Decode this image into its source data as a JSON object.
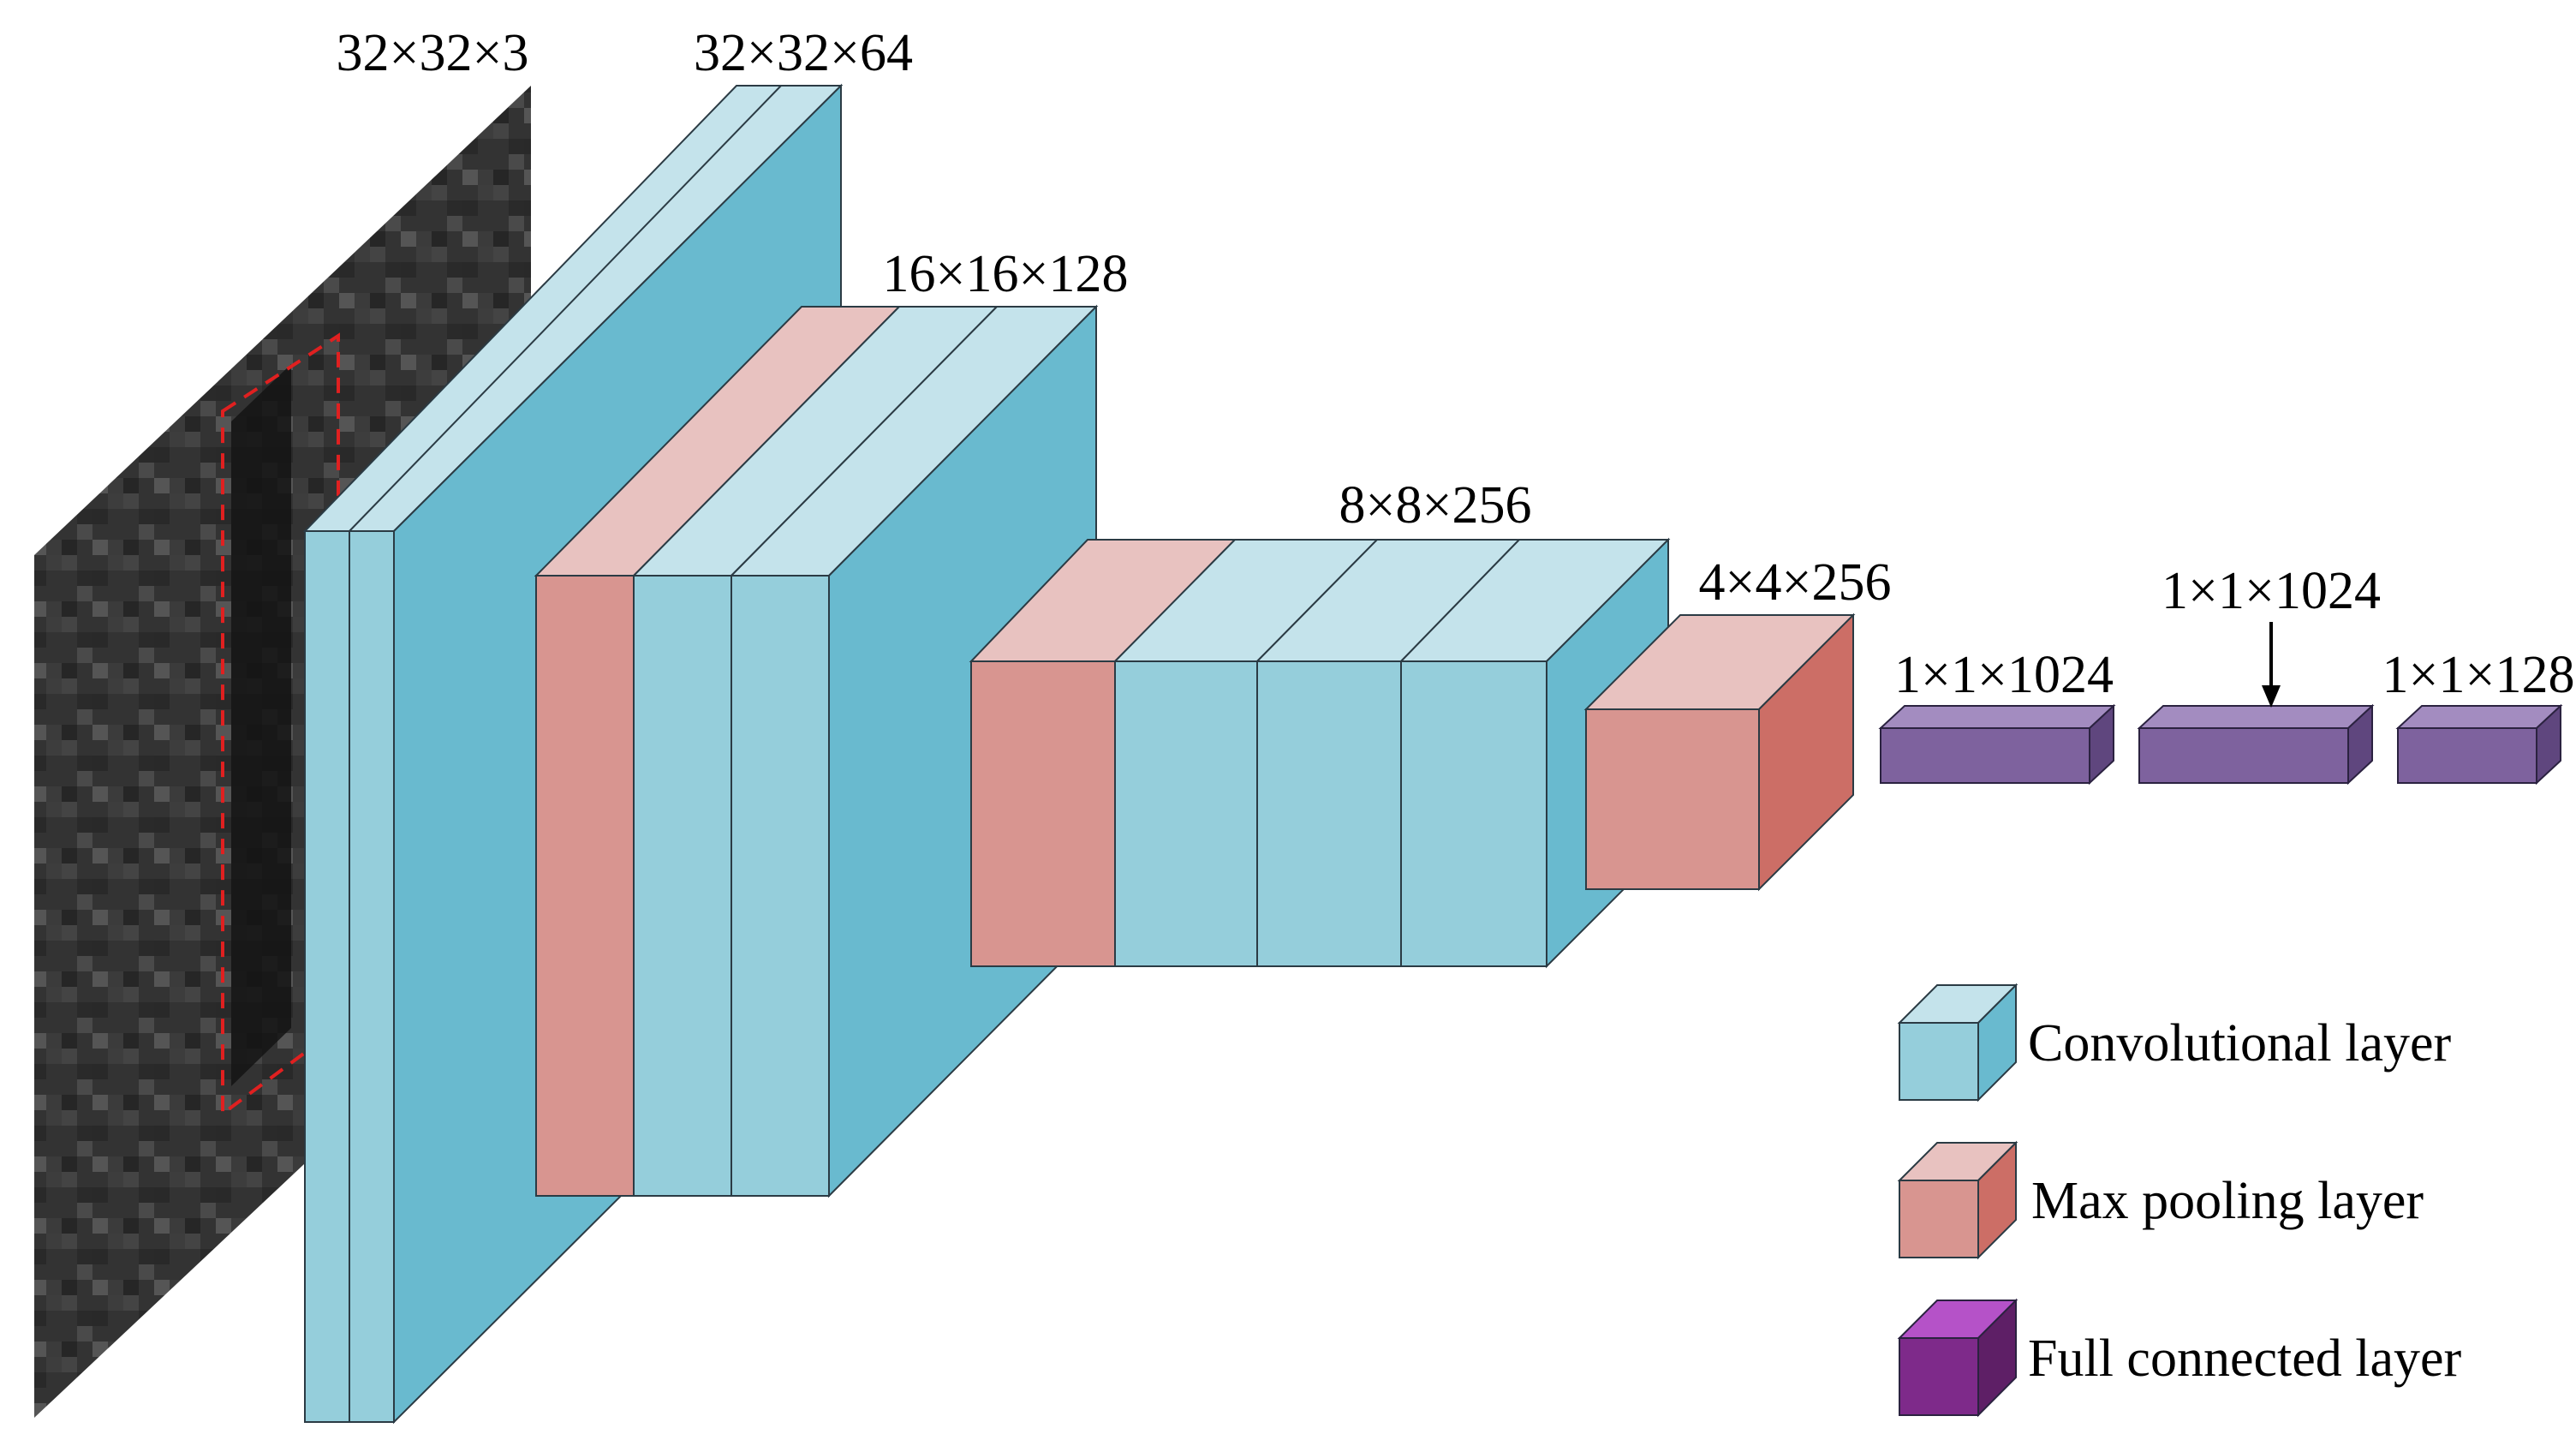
{
  "diagram": {
    "dimension_labels": {
      "input": "32×32×3",
      "block1": "32×32×64",
      "block2": "16×16×128",
      "block3": "8×8×256",
      "pool_final": "4×4×256",
      "fc1": "1×1×1024",
      "fc2": "1×1×1024",
      "fc3": "1×1×128"
    },
    "legend": {
      "conv": "Convolutional layer",
      "pool": "Max pooling layer",
      "fc": "Full connected layer"
    },
    "colors": {
      "conv_front": "#95CEDB",
      "conv_top": "#C4E3EB",
      "conv_side": "#69BACF",
      "pool_front": "#D89590",
      "pool_top": "#E8C2C0",
      "pool_side": "#CC6E66",
      "fc_front": "#7E629E",
      "fc_top": "#A38CC0",
      "fc_side": "#5F467E",
      "fc_legend_front": "#7E2A8A",
      "fc_legend_top": "#B552C8",
      "fc_legend_side": "#5E1F66",
      "input_image": "#2E2E2E",
      "crop_box": "#E02020"
    }
  }
}
